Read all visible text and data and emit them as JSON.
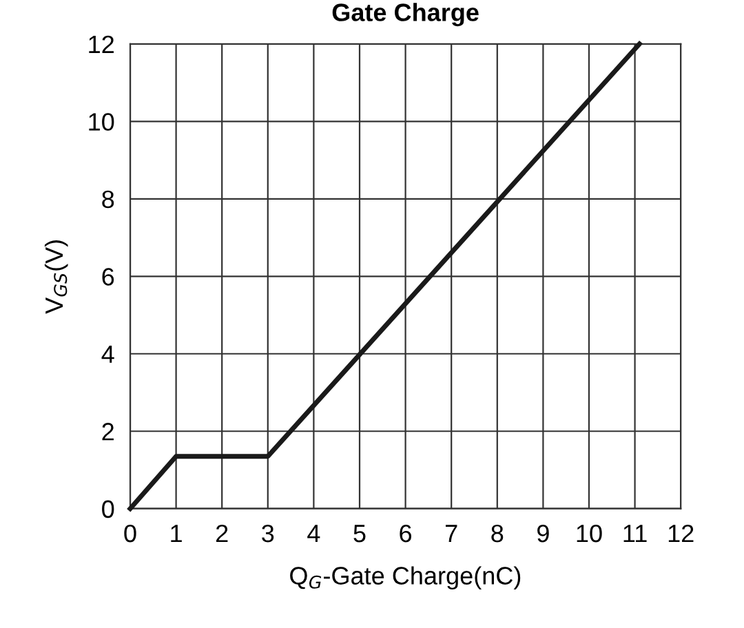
{
  "chart_data": {
    "type": "line",
    "title": "Gate Charge",
    "xlabel": "Q$_{G}$-Gate Charge(nC)",
    "ylabel": "V$_{GS}$(V)",
    "series": [
      {
        "color": "#1a1a1a",
        "x": [
          0,
          1,
          3,
          11.1
        ],
        "values": [
          0,
          1.35,
          1.35,
          12
        ]
      }
    ],
    "xlim": [
      0,
      12
    ],
    "ylim": [
      0,
      12
    ],
    "xticks": [
      0,
      1,
      2,
      3,
      4,
      5,
      6,
      7,
      8,
      9,
      10,
      11,
      12
    ],
    "yticks": [
      0,
      2,
      4,
      6,
      8,
      10,
      12
    ],
    "grid": true,
    "legend": false,
    "marker": "none",
    "line_style": "solid"
  }
}
